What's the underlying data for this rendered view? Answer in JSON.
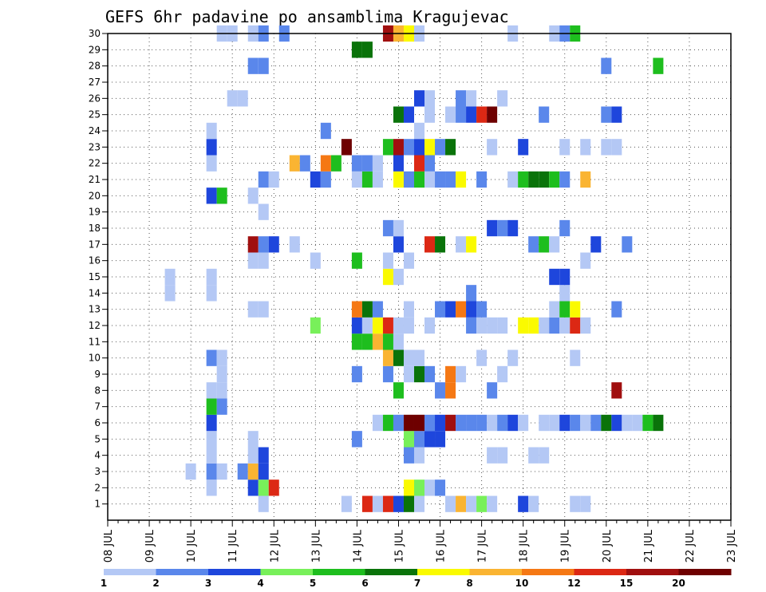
{
  "chart_data": {
    "type": "heatmap",
    "title": "GEFS 6hr padavine po ansamblima Kragujevac",
    "xlabel": "",
    "ylabel": "",
    "x_ticks": [
      "08 JUL",
      "09 JUL",
      "10 JUL",
      "11 JUL",
      "12 JUL",
      "13 JUL",
      "14 JUL",
      "15 JUL",
      "16 JUL",
      "17 JUL",
      "18 JUL",
      "19 JUL",
      "20 JUL",
      "21 JUL",
      "22 JUL",
      "23 JUL"
    ],
    "x_unit": "6-hour step (4 per day), step 0 = 08 JUL 00 UTC",
    "y_range": [
      0,
      30
    ],
    "y_ticks": [
      1,
      2,
      3,
      4,
      5,
      6,
      7,
      8,
      9,
      10,
      11,
      12,
      13,
      14,
      15,
      16,
      17,
      18,
      19,
      20,
      21,
      22,
      23,
      24,
      25,
      26,
      27,
      28,
      29,
      30
    ],
    "grid": true,
    "colorbar": {
      "levels": [
        "1",
        "2",
        "3",
        "4",
        "5",
        "6",
        "7",
        "8",
        "10",
        "12",
        "15",
        "20"
      ],
      "colors": [
        "#b4c8f5",
        "#5a87eb",
        "#1e46dc",
        "#78f05a",
        "#1ebe1e",
        "#0a730a",
        "#fafa00",
        "#fab432",
        "#f57814",
        "#dc2814",
        "#a00f0f",
        "#6e0000"
      ]
    },
    "cells_format": "[step, member, colorIndex]",
    "cells": [
      [
        15,
        1,
        0
      ],
      [
        23,
        1,
        0
      ],
      [
        25,
        1,
        9
      ],
      [
        26,
        1,
        0
      ],
      [
        27,
        1,
        9
      ],
      [
        28,
        1,
        2
      ],
      [
        29,
        1,
        5
      ],
      [
        30,
        1,
        0
      ],
      [
        33,
        1,
        0
      ],
      [
        34,
        1,
        7
      ],
      [
        35,
        1,
        0
      ],
      [
        36,
        1,
        3
      ],
      [
        37,
        1,
        0
      ],
      [
        40,
        1,
        2
      ],
      [
        41,
        1,
        0
      ],
      [
        45,
        1,
        0
      ],
      [
        46,
        1,
        0
      ],
      [
        10,
        2,
        0
      ],
      [
        14,
        2,
        2
      ],
      [
        15,
        2,
        3
      ],
      [
        16,
        2,
        9
      ],
      [
        29,
        2,
        6
      ],
      [
        30,
        2,
        3
      ],
      [
        31,
        2,
        0
      ],
      [
        32,
        2,
        1
      ],
      [
        8,
        3,
        0
      ],
      [
        10,
        3,
        1
      ],
      [
        11,
        3,
        0
      ],
      [
        13,
        3,
        1
      ],
      [
        14,
        3,
        7
      ],
      [
        15,
        3,
        2
      ],
      [
        10,
        4,
        0
      ],
      [
        14,
        4,
        0
      ],
      [
        15,
        4,
        2
      ],
      [
        29,
        4,
        1
      ],
      [
        30,
        4,
        0
      ],
      [
        37,
        4,
        0
      ],
      [
        38,
        4,
        0
      ],
      [
        41,
        4,
        0
      ],
      [
        42,
        4,
        0
      ],
      [
        10,
        5,
        0
      ],
      [
        14,
        5,
        0
      ],
      [
        24,
        5,
        1
      ],
      [
        29,
        5,
        3
      ],
      [
        30,
        5,
        1
      ],
      [
        31,
        5,
        2
      ],
      [
        32,
        5,
        2
      ],
      [
        10,
        6,
        2
      ],
      [
        26,
        6,
        0
      ],
      [
        27,
        6,
        4
      ],
      [
        28,
        6,
        1
      ],
      [
        29,
        6,
        11
      ],
      [
        30,
        6,
        11
      ],
      [
        31,
        6,
        1
      ],
      [
        32,
        6,
        2
      ],
      [
        33,
        6,
        10
      ],
      [
        34,
        6,
        1
      ],
      [
        35,
        6,
        1
      ],
      [
        36,
        6,
        1
      ],
      [
        37,
        6,
        0
      ],
      [
        38,
        6,
        1
      ],
      [
        39,
        6,
        2
      ],
      [
        40,
        6,
        0
      ],
      [
        42,
        6,
        0
      ],
      [
        43,
        6,
        0
      ],
      [
        44,
        6,
        2
      ],
      [
        45,
        6,
        1
      ],
      [
        46,
        6,
        0
      ],
      [
        47,
        6,
        1
      ],
      [
        48,
        6,
        5
      ],
      [
        49,
        6,
        2
      ],
      [
        50,
        6,
        0
      ],
      [
        51,
        6,
        0
      ],
      [
        52,
        6,
        4
      ],
      [
        53,
        6,
        5
      ],
      [
        10,
        7,
        4
      ],
      [
        11,
        7,
        1
      ],
      [
        10,
        8,
        0
      ],
      [
        11,
        8,
        0
      ],
      [
        28,
        8,
        4
      ],
      [
        32,
        8,
        1
      ],
      [
        33,
        8,
        8
      ],
      [
        37,
        8,
        1
      ],
      [
        49,
        8,
        10
      ],
      [
        11,
        9,
        0
      ],
      [
        24,
        9,
        1
      ],
      [
        27,
        9,
        1
      ],
      [
        29,
        9,
        0
      ],
      [
        30,
        9,
        5
      ],
      [
        31,
        9,
        1
      ],
      [
        33,
        9,
        8
      ],
      [
        34,
        9,
        0
      ],
      [
        38,
        9,
        0
      ],
      [
        10,
        10,
        1
      ],
      [
        11,
        10,
        0
      ],
      [
        27,
        10,
        7
      ],
      [
        28,
        10,
        5
      ],
      [
        29,
        10,
        0
      ],
      [
        30,
        10,
        0
      ],
      [
        36,
        10,
        0
      ],
      [
        39,
        10,
        0
      ],
      [
        45,
        10,
        0
      ],
      [
        24,
        11,
        4
      ],
      [
        25,
        11,
        4
      ],
      [
        26,
        11,
        7
      ],
      [
        27,
        11,
        4
      ],
      [
        28,
        11,
        0
      ],
      [
        20,
        12,
        3
      ],
      [
        24,
        12,
        2
      ],
      [
        25,
        12,
        0
      ],
      [
        26,
        12,
        6
      ],
      [
        27,
        12,
        9
      ],
      [
        28,
        12,
        0
      ],
      [
        29,
        12,
        0
      ],
      [
        31,
        12,
        0
      ],
      [
        35,
        12,
        1
      ],
      [
        36,
        12,
        0
      ],
      [
        37,
        12,
        0
      ],
      [
        38,
        12,
        0
      ],
      [
        40,
        12,
        6
      ],
      [
        41,
        12,
        6
      ],
      [
        42,
        12,
        0
      ],
      [
        43,
        12,
        1
      ],
      [
        44,
        12,
        0
      ],
      [
        45,
        12,
        9
      ],
      [
        46,
        12,
        0
      ],
      [
        14,
        13,
        0
      ],
      [
        15,
        13,
        0
      ],
      [
        24,
        13,
        8
      ],
      [
        25,
        13,
        5
      ],
      [
        26,
        13,
        1
      ],
      [
        29,
        13,
        0
      ],
      [
        32,
        13,
        1
      ],
      [
        33,
        13,
        2
      ],
      [
        34,
        13,
        8
      ],
      [
        35,
        13,
        2
      ],
      [
        36,
        13,
        1
      ],
      [
        43,
        13,
        0
      ],
      [
        44,
        13,
        4
      ],
      [
        45,
        13,
        6
      ],
      [
        49,
        13,
        1
      ],
      [
        6,
        14,
        0
      ],
      [
        10,
        14,
        0
      ],
      [
        35,
        14,
        1
      ],
      [
        44,
        14,
        0
      ],
      [
        6,
        15,
        0
      ],
      [
        10,
        15,
        0
      ],
      [
        27,
        15,
        6
      ],
      [
        28,
        15,
        0
      ],
      [
        43,
        15,
        2
      ],
      [
        44,
        15,
        2
      ],
      [
        14,
        16,
        0
      ],
      [
        15,
        16,
        0
      ],
      [
        20,
        16,
        0
      ],
      [
        24,
        16,
        4
      ],
      [
        27,
        16,
        0
      ],
      [
        29,
        16,
        0
      ],
      [
        46,
        16,
        0
      ],
      [
        14,
        17,
        10
      ],
      [
        15,
        17,
        1
      ],
      [
        16,
        17,
        2
      ],
      [
        18,
        17,
        0
      ],
      [
        28,
        17,
        2
      ],
      [
        31,
        17,
        9
      ],
      [
        32,
        17,
        5
      ],
      [
        34,
        17,
        0
      ],
      [
        35,
        17,
        6
      ],
      [
        41,
        17,
        1
      ],
      [
        42,
        17,
        4
      ],
      [
        43,
        17,
        0
      ],
      [
        47,
        17,
        2
      ],
      [
        50,
        17,
        1
      ],
      [
        27,
        18,
        1
      ],
      [
        28,
        18,
        0
      ],
      [
        37,
        18,
        2
      ],
      [
        38,
        18,
        1
      ],
      [
        39,
        18,
        2
      ],
      [
        44,
        18,
        1
      ],
      [
        15,
        19,
        0
      ],
      [
        10,
        20,
        2
      ],
      [
        11,
        20,
        4
      ],
      [
        14,
        20,
        0
      ],
      [
        15,
        21,
        1
      ],
      [
        16,
        21,
        0
      ],
      [
        20,
        21,
        2
      ],
      [
        21,
        21,
        1
      ],
      [
        24,
        21,
        0
      ],
      [
        25,
        21,
        4
      ],
      [
        26,
        21,
        0
      ],
      [
        28,
        21,
        6
      ],
      [
        29,
        21,
        1
      ],
      [
        30,
        21,
        4
      ],
      [
        31,
        21,
        0
      ],
      [
        32,
        21,
        1
      ],
      [
        33,
        21,
        1
      ],
      [
        34,
        21,
        6
      ],
      [
        36,
        21,
        1
      ],
      [
        39,
        21,
        0
      ],
      [
        40,
        21,
        4
      ],
      [
        41,
        21,
        5
      ],
      [
        42,
        21,
        5
      ],
      [
        43,
        21,
        4
      ],
      [
        44,
        21,
        1
      ],
      [
        46,
        21,
        7
      ],
      [
        10,
        22,
        0
      ],
      [
        18,
        22,
        7
      ],
      [
        19,
        22,
        1
      ],
      [
        21,
        22,
        8
      ],
      [
        22,
        22,
        4
      ],
      [
        24,
        22,
        1
      ],
      [
        25,
        22,
        1
      ],
      [
        26,
        22,
        0
      ],
      [
        28,
        22,
        2
      ],
      [
        30,
        22,
        9
      ],
      [
        31,
        22,
        1
      ],
      [
        10,
        23,
        2
      ],
      [
        23,
        23,
        11
      ],
      [
        27,
        23,
        4
      ],
      [
        28,
        23,
        10
      ],
      [
        29,
        23,
        1
      ],
      [
        30,
        23,
        2
      ],
      [
        31,
        23,
        6
      ],
      [
        32,
        23,
        1
      ],
      [
        33,
        23,
        5
      ],
      [
        37,
        23,
        0
      ],
      [
        40,
        23,
        2
      ],
      [
        44,
        23,
        0
      ],
      [
        46,
        23,
        0
      ],
      [
        48,
        23,
        0
      ],
      [
        49,
        23,
        0
      ],
      [
        10,
        24,
        0
      ],
      [
        21,
        24,
        1
      ],
      [
        30,
        24,
        0
      ],
      [
        28,
        25,
        5
      ],
      [
        29,
        25,
        2
      ],
      [
        31,
        25,
        0
      ],
      [
        33,
        25,
        0
      ],
      [
        34,
        25,
        1
      ],
      [
        35,
        25,
        2
      ],
      [
        36,
        25,
        9
      ],
      [
        37,
        25,
        11
      ],
      [
        42,
        25,
        1
      ],
      [
        48,
        25,
        1
      ],
      [
        49,
        25,
        2
      ],
      [
        12,
        26,
        0
      ],
      [
        13,
        26,
        0
      ],
      [
        30,
        26,
        2
      ],
      [
        31,
        26,
        0
      ],
      [
        34,
        26,
        1
      ],
      [
        35,
        26,
        0
      ],
      [
        38,
        26,
        0
      ],
      [
        14,
        28,
        1
      ],
      [
        15,
        28,
        1
      ],
      [
        48,
        28,
        1
      ],
      [
        53,
        28,
        4
      ],
      [
        24,
        29,
        5
      ],
      [
        25,
        29,
        5
      ],
      [
        11,
        30,
        0
      ],
      [
        12,
        30,
        0
      ],
      [
        14,
        30,
        0
      ],
      [
        15,
        30,
        1
      ],
      [
        17,
        30,
        1
      ],
      [
        27,
        30,
        10
      ],
      [
        28,
        30,
        7
      ],
      [
        29,
        30,
        6
      ],
      [
        30,
        30,
        0
      ],
      [
        39,
        30,
        0
      ],
      [
        43,
        30,
        0
      ],
      [
        44,
        30,
        1
      ],
      [
        45,
        30,
        4
      ]
    ]
  }
}
